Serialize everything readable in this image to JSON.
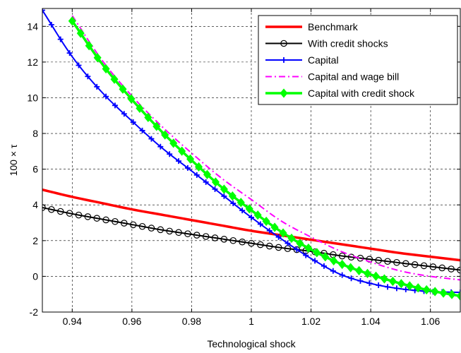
{
  "chart_data": {
    "type": "line",
    "title": "",
    "xlabel": "Technological shock",
    "ylabel": "100 × τ",
    "xlim": [
      0.93,
      1.07
    ],
    "ylim": [
      -2,
      15
    ],
    "xticks": [
      0.94,
      0.96,
      0.98,
      1.0,
      1.02,
      1.04,
      1.06
    ],
    "xtick_labels": [
      "0.94",
      "0.96",
      "0.98",
      "1",
      "1.02",
      "1.04",
      "1.06"
    ],
    "yticks": [
      -2,
      0,
      2,
      4,
      6,
      8,
      10,
      12,
      14
    ],
    "ytick_labels": [
      "-2",
      "0",
      "2",
      "4",
      "6",
      "8",
      "10",
      "12",
      "14"
    ],
    "grid": true,
    "legend_position": "top-right",
    "series": [
      {
        "name": "Benchmark",
        "color": "#ff0000",
        "style": "solid-thick",
        "marker": "none",
        "x": [
          0.93,
          0.94,
          0.95,
          0.96,
          0.97,
          0.98,
          0.99,
          1.0,
          1.01,
          1.02,
          1.03,
          1.04,
          1.05,
          1.06,
          1.07
        ],
        "y": [
          4.85,
          4.45,
          4.1,
          3.75,
          3.45,
          3.15,
          2.85,
          2.55,
          2.3,
          2.05,
          1.8,
          1.55,
          1.3,
          1.1,
          0.9
        ]
      },
      {
        "name": "With credit shocks",
        "color": "#000000",
        "style": "solid",
        "marker": "circle",
        "x": [
          0.93,
          0.94,
          0.95,
          0.96,
          0.97,
          0.98,
          0.99,
          1.0,
          1.01,
          1.02,
          1.03,
          1.04,
          1.05,
          1.06,
          1.07
        ],
        "y": [
          3.85,
          3.5,
          3.2,
          2.9,
          2.6,
          2.35,
          2.1,
          1.85,
          1.6,
          1.4,
          1.15,
          0.95,
          0.75,
          0.55,
          0.35
        ]
      },
      {
        "name": "Capital",
        "color": "#0000ff",
        "style": "solid",
        "marker": "plus",
        "x": [
          0.93,
          0.94,
          0.95,
          0.96,
          0.97,
          0.98,
          0.99,
          1.0,
          1.01,
          1.02,
          1.03,
          1.04,
          1.05,
          1.06,
          1.07
        ],
        "y": [
          14.9,
          12.3,
          10.3,
          8.7,
          7.2,
          5.9,
          4.6,
          3.3,
          2.1,
          1.0,
          0.1,
          -0.4,
          -0.7,
          -0.85,
          -0.9
        ]
      },
      {
        "name": "Capital and wage bill",
        "color": "#ff00ff",
        "style": "dashdot",
        "marker": "none",
        "x": [
          0.94,
          0.95,
          0.96,
          0.97,
          0.98,
          0.99,
          1.0,
          1.01,
          1.02,
          1.03,
          1.04,
          1.05,
          1.06,
          1.07
        ],
        "y": [
          14.6,
          12.1,
          10.1,
          8.4,
          6.9,
          5.5,
          4.3,
          3.1,
          2.2,
          1.4,
          0.8,
          0.3,
          0.0,
          -0.2
        ]
      },
      {
        "name": "Capital with credit shock",
        "color": "#00ff00",
        "style": "solid-thick",
        "marker": "diamond",
        "x": [
          0.94,
          0.95,
          0.96,
          0.97,
          0.98,
          0.99,
          1.0,
          1.01,
          1.02,
          1.03,
          1.04,
          1.05,
          1.06,
          1.07
        ],
        "y": [
          14.3,
          11.9,
          9.9,
          8.1,
          6.5,
          5.0,
          3.7,
          2.5,
          1.5,
          0.7,
          0.1,
          -0.4,
          -0.8,
          -1.1
        ]
      }
    ]
  }
}
